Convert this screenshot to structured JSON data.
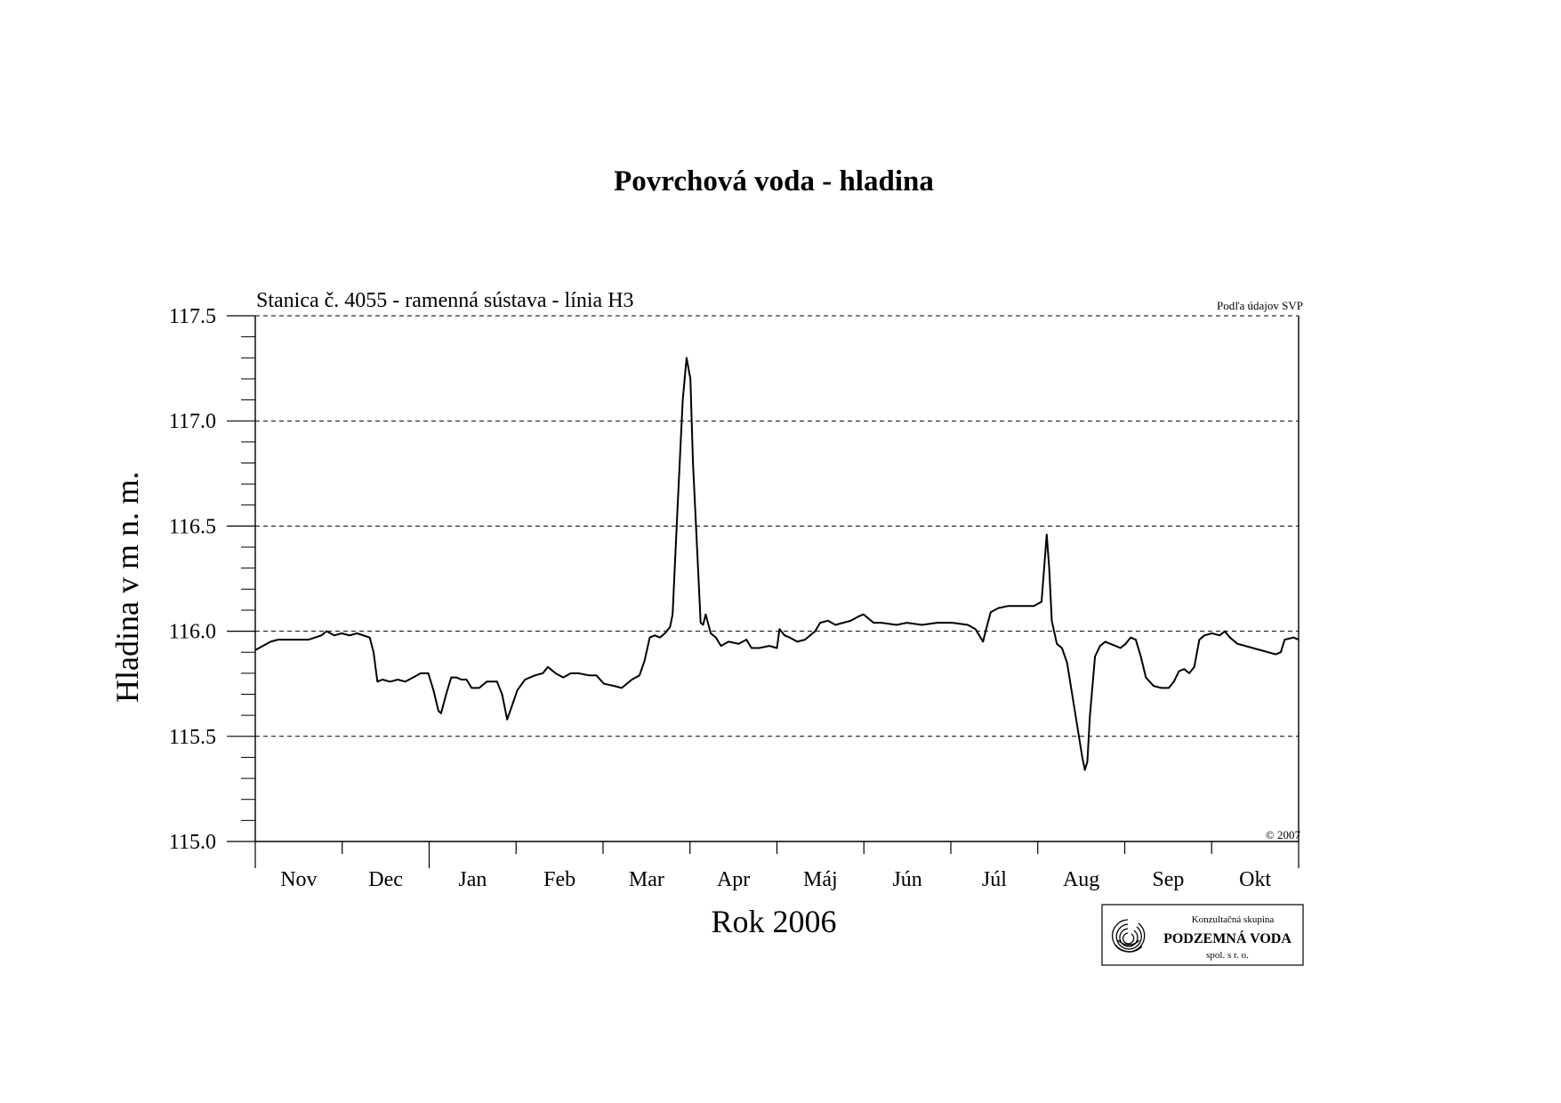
{
  "chart_data": {
    "type": "line",
    "title": "Povrchová voda - hladina",
    "subtitle": "Stanica č. 4055 - ramenná sústava - línia H3",
    "source_note": "Podľa údajov SVP",
    "copyright": "© 2007",
    "xlabel": "Rok 2006",
    "ylabel": "Hladina v m n. m.",
    "ylim": [
      115.0,
      117.5
    ],
    "yticks": [
      "115.0",
      "115.5",
      "116.0",
      "116.5",
      "117.0",
      "117.5"
    ],
    "grid": true,
    "months": [
      "Nov",
      "Dec",
      "Jan",
      "Feb",
      "Mar",
      "Apr",
      "Máj",
      "Jún",
      "Júl",
      "Aug",
      "Sep",
      "Okt"
    ],
    "series": [
      {
        "values": [
          [
            0.0,
            115.91
          ],
          [
            3.0,
            115.93
          ],
          [
            6.0,
            115.95
          ],
          [
            9.0,
            115.96
          ],
          [
            15.0,
            115.96
          ],
          [
            21.0,
            115.96
          ],
          [
            26.0,
            115.98
          ],
          [
            28.0,
            116.0
          ],
          [
            31.0,
            115.98
          ],
          [
            34.0,
            115.99
          ],
          [
            37.0,
            115.98
          ],
          [
            40.0,
            115.99
          ],
          [
            45.0,
            115.97
          ],
          [
            46.5,
            115.9
          ],
          [
            48.0,
            115.76
          ],
          [
            50.0,
            115.77
          ],
          [
            53.0,
            115.76
          ],
          [
            56.0,
            115.77
          ],
          [
            59.0,
            115.76
          ],
          [
            62.0,
            115.78
          ],
          [
            65.0,
            115.8
          ],
          [
            68.0,
            115.8
          ],
          [
            70.0,
            115.72
          ],
          [
            72.0,
            115.62
          ],
          [
            73.0,
            115.61
          ],
          [
            75.0,
            115.7
          ],
          [
            77.0,
            115.78
          ],
          [
            79.0,
            115.78
          ],
          [
            81.0,
            115.77
          ],
          [
            83.0,
            115.77
          ],
          [
            85.0,
            115.73
          ],
          [
            88.0,
            115.73
          ],
          [
            91.0,
            115.76
          ],
          [
            95.0,
            115.76
          ],
          [
            97.0,
            115.7
          ],
          [
            99.0,
            115.58
          ],
          [
            101.0,
            115.65
          ],
          [
            103.0,
            115.72
          ],
          [
            106.0,
            115.77
          ],
          [
            110.0,
            115.79
          ],
          [
            113.0,
            115.8
          ],
          [
            115.0,
            115.83
          ],
          [
            118.0,
            115.8
          ],
          [
            121.0,
            115.78
          ],
          [
            124.0,
            115.8
          ],
          [
            127.0,
            115.8
          ],
          [
            131.0,
            115.79
          ],
          [
            134.0,
            115.79
          ],
          [
            137.0,
            115.75
          ],
          [
            141.0,
            115.74
          ],
          [
            144.0,
            115.73
          ],
          [
            148.0,
            115.77
          ],
          [
            151.0,
            115.79
          ],
          [
            153.0,
            115.86
          ],
          [
            155.0,
            115.97
          ],
          [
            157.0,
            115.98
          ],
          [
            159.0,
            115.97
          ],
          [
            161.0,
            115.99
          ],
          [
            163.0,
            116.02
          ],
          [
            164.0,
            116.08
          ],
          [
            166.0,
            116.6
          ],
          [
            168.0,
            117.1
          ],
          [
            169.5,
            117.3
          ],
          [
            171.0,
            117.2
          ],
          [
            172.0,
            116.8
          ],
          [
            174.0,
            116.3
          ],
          [
            175.0,
            116.04
          ],
          [
            176.0,
            116.03
          ],
          [
            177.0,
            116.08
          ],
          [
            179.0,
            115.99
          ],
          [
            181.0,
            115.97
          ],
          [
            183.0,
            115.93
          ],
          [
            186.0,
            115.95
          ],
          [
            190.0,
            115.94
          ],
          [
            193.0,
            115.96
          ],
          [
            195.0,
            115.92
          ],
          [
            198.0,
            115.92
          ],
          [
            202.0,
            115.93
          ],
          [
            205.0,
            115.92
          ],
          [
            206.0,
            116.01
          ],
          [
            208.0,
            115.98
          ],
          [
            210.0,
            115.97
          ],
          [
            213.0,
            115.95
          ],
          [
            216.0,
            115.96
          ],
          [
            220.0,
            116.0
          ],
          [
            222.0,
            116.04
          ],
          [
            225.0,
            116.05
          ],
          [
            228.0,
            116.03
          ],
          [
            231.0,
            116.04
          ],
          [
            234.0,
            116.05
          ],
          [
            237.0,
            116.07
          ],
          [
            239.0,
            116.08
          ],
          [
            241.0,
            116.06
          ],
          [
            243.0,
            116.04
          ],
          [
            246.0,
            116.04
          ],
          [
            252.0,
            116.03
          ],
          [
            256.0,
            116.04
          ],
          [
            262.0,
            116.03
          ],
          [
            268.0,
            116.04
          ],
          [
            274.0,
            116.04
          ],
          [
            280.0,
            116.03
          ],
          [
            283.0,
            116.01
          ],
          [
            285.0,
            115.97
          ],
          [
            286.0,
            115.95
          ],
          [
            287.0,
            116.0
          ],
          [
            289.0,
            116.09
          ],
          [
            292.0,
            116.11
          ],
          [
            296.0,
            116.12
          ],
          [
            302.0,
            116.12
          ],
          [
            306.0,
            116.12
          ],
          [
            309.0,
            116.14
          ],
          [
            310.0,
            116.3
          ],
          [
            311.0,
            116.46
          ],
          [
            312.0,
            116.3
          ],
          [
            313.0,
            116.05
          ],
          [
            315.0,
            115.94
          ],
          [
            317.0,
            115.92
          ],
          [
            319.0,
            115.85
          ],
          [
            321.0,
            115.7
          ],
          [
            323.0,
            115.55
          ],
          [
            325.0,
            115.4
          ],
          [
            326.0,
            115.34
          ],
          [
            327.0,
            115.38
          ],
          [
            328.0,
            115.6
          ],
          [
            330.0,
            115.88
          ],
          [
            332.0,
            115.93
          ],
          [
            334.0,
            115.95
          ],
          [
            336.0,
            115.94
          ],
          [
            338.0,
            115.93
          ],
          [
            340.0,
            115.92
          ],
          [
            342.0,
            115.94
          ],
          [
            344.0,
            115.97
          ],
          [
            346.0,
            115.96
          ],
          [
            348.0,
            115.88
          ],
          [
            350.0,
            115.78
          ],
          [
            353.0,
            115.74
          ],
          [
            356.0,
            115.73
          ],
          [
            359.0,
            115.73
          ],
          [
            361.0,
            115.76
          ],
          [
            363.0,
            115.81
          ],
          [
            365.0,
            115.82
          ],
          [
            367.0,
            115.8
          ],
          [
            369.0,
            115.83
          ],
          [
            371.0,
            115.96
          ],
          [
            373.0,
            115.98
          ],
          [
            376.0,
            115.99
          ],
          [
            379.0,
            115.98
          ],
          [
            381.0,
            116.0
          ],
          [
            383.0,
            115.97
          ],
          [
            386.0,
            115.94
          ],
          [
            389.0,
            115.93
          ],
          [
            392.0,
            115.92
          ],
          [
            395.0,
            115.91
          ],
          [
            398.0,
            115.9
          ],
          [
            401.0,
            115.89
          ],
          [
            403.0,
            115.9
          ],
          [
            404.5,
            115.96
          ],
          [
            408.0,
            115.97
          ],
          [
            410.0,
            115.96
          ]
        ]
      }
    ]
  },
  "logo": {
    "line1": "Konzultačná skupina",
    "line2": "PODZEMNÁ VODA",
    "line3": "spol. s r. o."
  }
}
